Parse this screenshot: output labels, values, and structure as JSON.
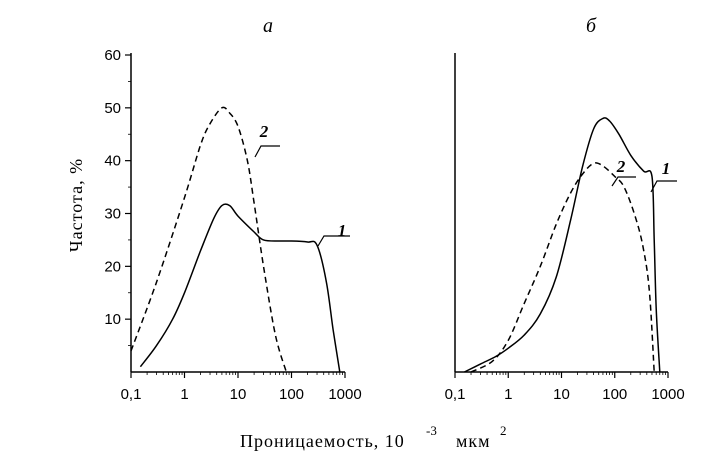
{
  "chart_data": [
    {
      "type": "line",
      "panel_label": "а",
      "ylabel": "Частота, %",
      "x_scale": "log",
      "xlim": [
        0.1,
        1000
      ],
      "ylim": [
        0,
        60
      ],
      "x_ticks": [
        0.1,
        1,
        10,
        100,
        1000
      ],
      "x_tick_labels": [
        "0,1",
        "1",
        "10",
        "100",
        "1000"
      ],
      "y_ticks": [
        10,
        20,
        30,
        40,
        50,
        60
      ],
      "y_tick_labels": [
        "10",
        "20",
        "30",
        "40",
        "50",
        "60"
      ],
      "series": [
        {
          "name": "1",
          "style": "solid",
          "x": [
            0.15,
            0.3,
            0.6,
            1,
            2,
            3.5,
            5,
            7,
            10,
            20,
            30,
            60,
            100,
            200,
            300,
            450,
            600,
            800
          ],
          "y": [
            1,
            5,
            10,
            15,
            23,
            29,
            31.5,
            31.5,
            29.5,
            26.5,
            25,
            24.8,
            24.8,
            24.6,
            24,
            17,
            8,
            0
          ]
        },
        {
          "name": "2",
          "style": "dashed",
          "x": [
            0.1,
            0.3,
            1,
            2,
            3,
            5,
            7,
            10,
            15,
            20,
            30,
            50,
            80
          ],
          "y": [
            4,
            17,
            33,
            43,
            47,
            50,
            49,
            46.5,
            40,
            32,
            20,
            7,
            0
          ]
        }
      ]
    },
    {
      "type": "line",
      "panel_label": "б",
      "x_scale": "log",
      "xlim": [
        0.1,
        1000
      ],
      "ylim": [
        0,
        60
      ],
      "x_ticks": [
        0.1,
        1,
        10,
        100,
        1000
      ],
      "x_tick_labels": [
        "0,1",
        "1",
        "10",
        "100",
        "1000"
      ],
      "series": [
        {
          "name": "1",
          "style": "solid",
          "x": [
            0.15,
            0.3,
            0.6,
            1,
            2,
            4,
            8,
            15,
            25,
            40,
            60,
            80,
            120,
            200,
            350,
            500,
            550,
            600,
            700
          ],
          "y": [
            0,
            1.5,
            3,
            4.5,
            7,
            11,
            18,
            29,
            39,
            46,
            48,
            47.5,
            45,
            41,
            38,
            37,
            25,
            12,
            0
          ]
        },
        {
          "name": "2",
          "style": "dashed",
          "x": [
            0.2,
            0.5,
            1,
            2,
            4,
            8,
            15,
            25,
            40,
            60,
            100,
            150,
            250,
            350,
            450,
            550
          ],
          "y": [
            0,
            2,
            6,
            13,
            20,
            28,
            34,
            37.5,
            39.5,
            39,
            37,
            35,
            29,
            23,
            15,
            0
          ]
        }
      ]
    }
  ],
  "xlabel_main": "Проницаемость, 10",
  "xlabel_exp": "-3",
  "xlabel_unit": "мкм",
  "xlabel_unit_exp": "2"
}
